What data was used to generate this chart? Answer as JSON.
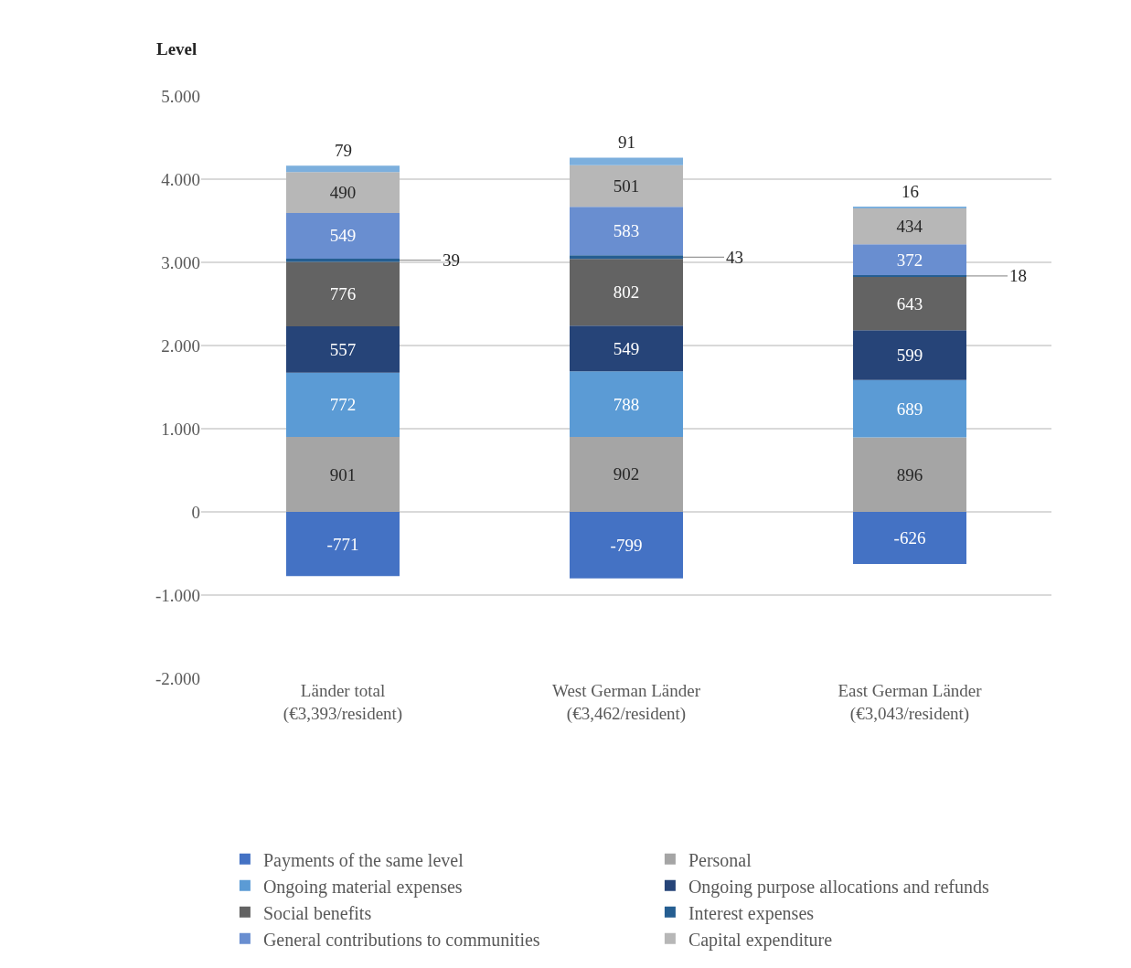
{
  "chart_data": {
    "type": "bar",
    "stacked": true,
    "ylabel": "Level",
    "categories": [
      "Länder total (€3,393/resident)",
      "West German Länder (€3,462/resident)",
      "East German Länder (€3,043/resident)"
    ],
    "series": [
      {
        "name": "Payments of the same level",
        "color": "#4472c4",
        "values": [
          -771,
          -799,
          -626
        ]
      },
      {
        "name": "Personal",
        "color": "#a5a5a5",
        "values": [
          901,
          902,
          896
        ]
      },
      {
        "name": "Ongoing material expenses",
        "color": "#5b9bd5",
        "values": [
          772,
          788,
          689
        ]
      },
      {
        "name": "Ongoing purpose allocations and refunds",
        "color": "#264478",
        "values": [
          557,
          549,
          599
        ]
      },
      {
        "name": "Social benefits",
        "color": "#636363",
        "values": [
          776,
          802,
          643
        ]
      },
      {
        "name": "Interest expenses",
        "color": "#255e91",
        "values": [
          39,
          43,
          18
        ]
      },
      {
        "name": "General contributions to communities",
        "color": "#698ed0",
        "values": [
          549,
          583,
          372
        ]
      },
      {
        "name": "Capital expenditure",
        "color": "#b7b7b7",
        "values": [
          490,
          501,
          434
        ]
      },
      {
        "color": "#7cafdd",
        "values": [
          79,
          91,
          16
        ]
      }
    ],
    "ylim": [
      -2000,
      5000
    ],
    "yticks": [
      {
        "value": -2000,
        "label": "-2.000"
      },
      {
        "value": -1000,
        "label": "-1.000"
      },
      0,
      {
        "value": 1000,
        "label": "1.000"
      },
      {
        "value": 2000,
        "label": "2.000"
      },
      {
        "value": 3000,
        "label": "3.000"
      },
      {
        "value": 4000,
        "label": "4.000"
      },
      {
        "value": 5000,
        "label": "5.000"
      }
    ],
    "grid": "y",
    "legend": "bottom",
    "data_labels": true
  }
}
